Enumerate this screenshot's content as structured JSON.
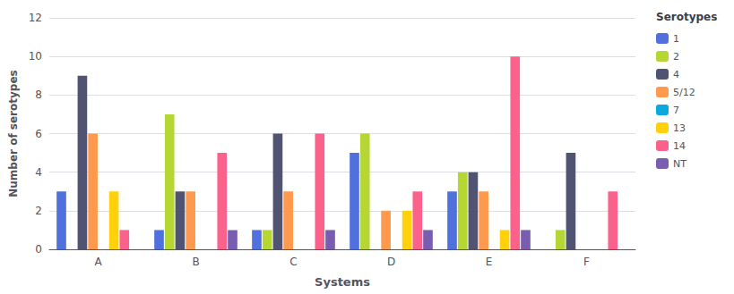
{
  "chart_data": {
    "type": "bar",
    "categories": [
      "A",
      "B",
      "C",
      "D",
      "E",
      "F"
    ],
    "series": [
      {
        "name": "1",
        "values": [
          3,
          1,
          1,
          5,
          3,
          0
        ]
      },
      {
        "name": "2",
        "values": [
          0,
          7,
          1,
          6,
          4,
          1
        ]
      },
      {
        "name": "4",
        "values": [
          9,
          3,
          6,
          0,
          4,
          5
        ]
      },
      {
        "name": "5/12",
        "values": [
          6,
          3,
          3,
          2,
          3,
          0
        ]
      },
      {
        "name": "7",
        "values": [
          0,
          0,
          0,
          0,
          0,
          0
        ]
      },
      {
        "name": "13",
        "values": [
          3,
          0,
          0,
          2,
          1,
          0
        ]
      },
      {
        "name": "14",
        "values": [
          1,
          5,
          6,
          3,
          10,
          3
        ]
      },
      {
        "name": "NT",
        "values": [
          0,
          1,
          1,
          1,
          1,
          0
        ]
      }
    ],
    "xlabel": "Systems",
    "ylabel": "Number of serotypes",
    "legend_title": "Serotypes",
    "ylim": [
      0,
      12
    ],
    "yticks": [
      0,
      2,
      4,
      6,
      8,
      10,
      12
    ],
    "grid": true,
    "legend": "right"
  }
}
